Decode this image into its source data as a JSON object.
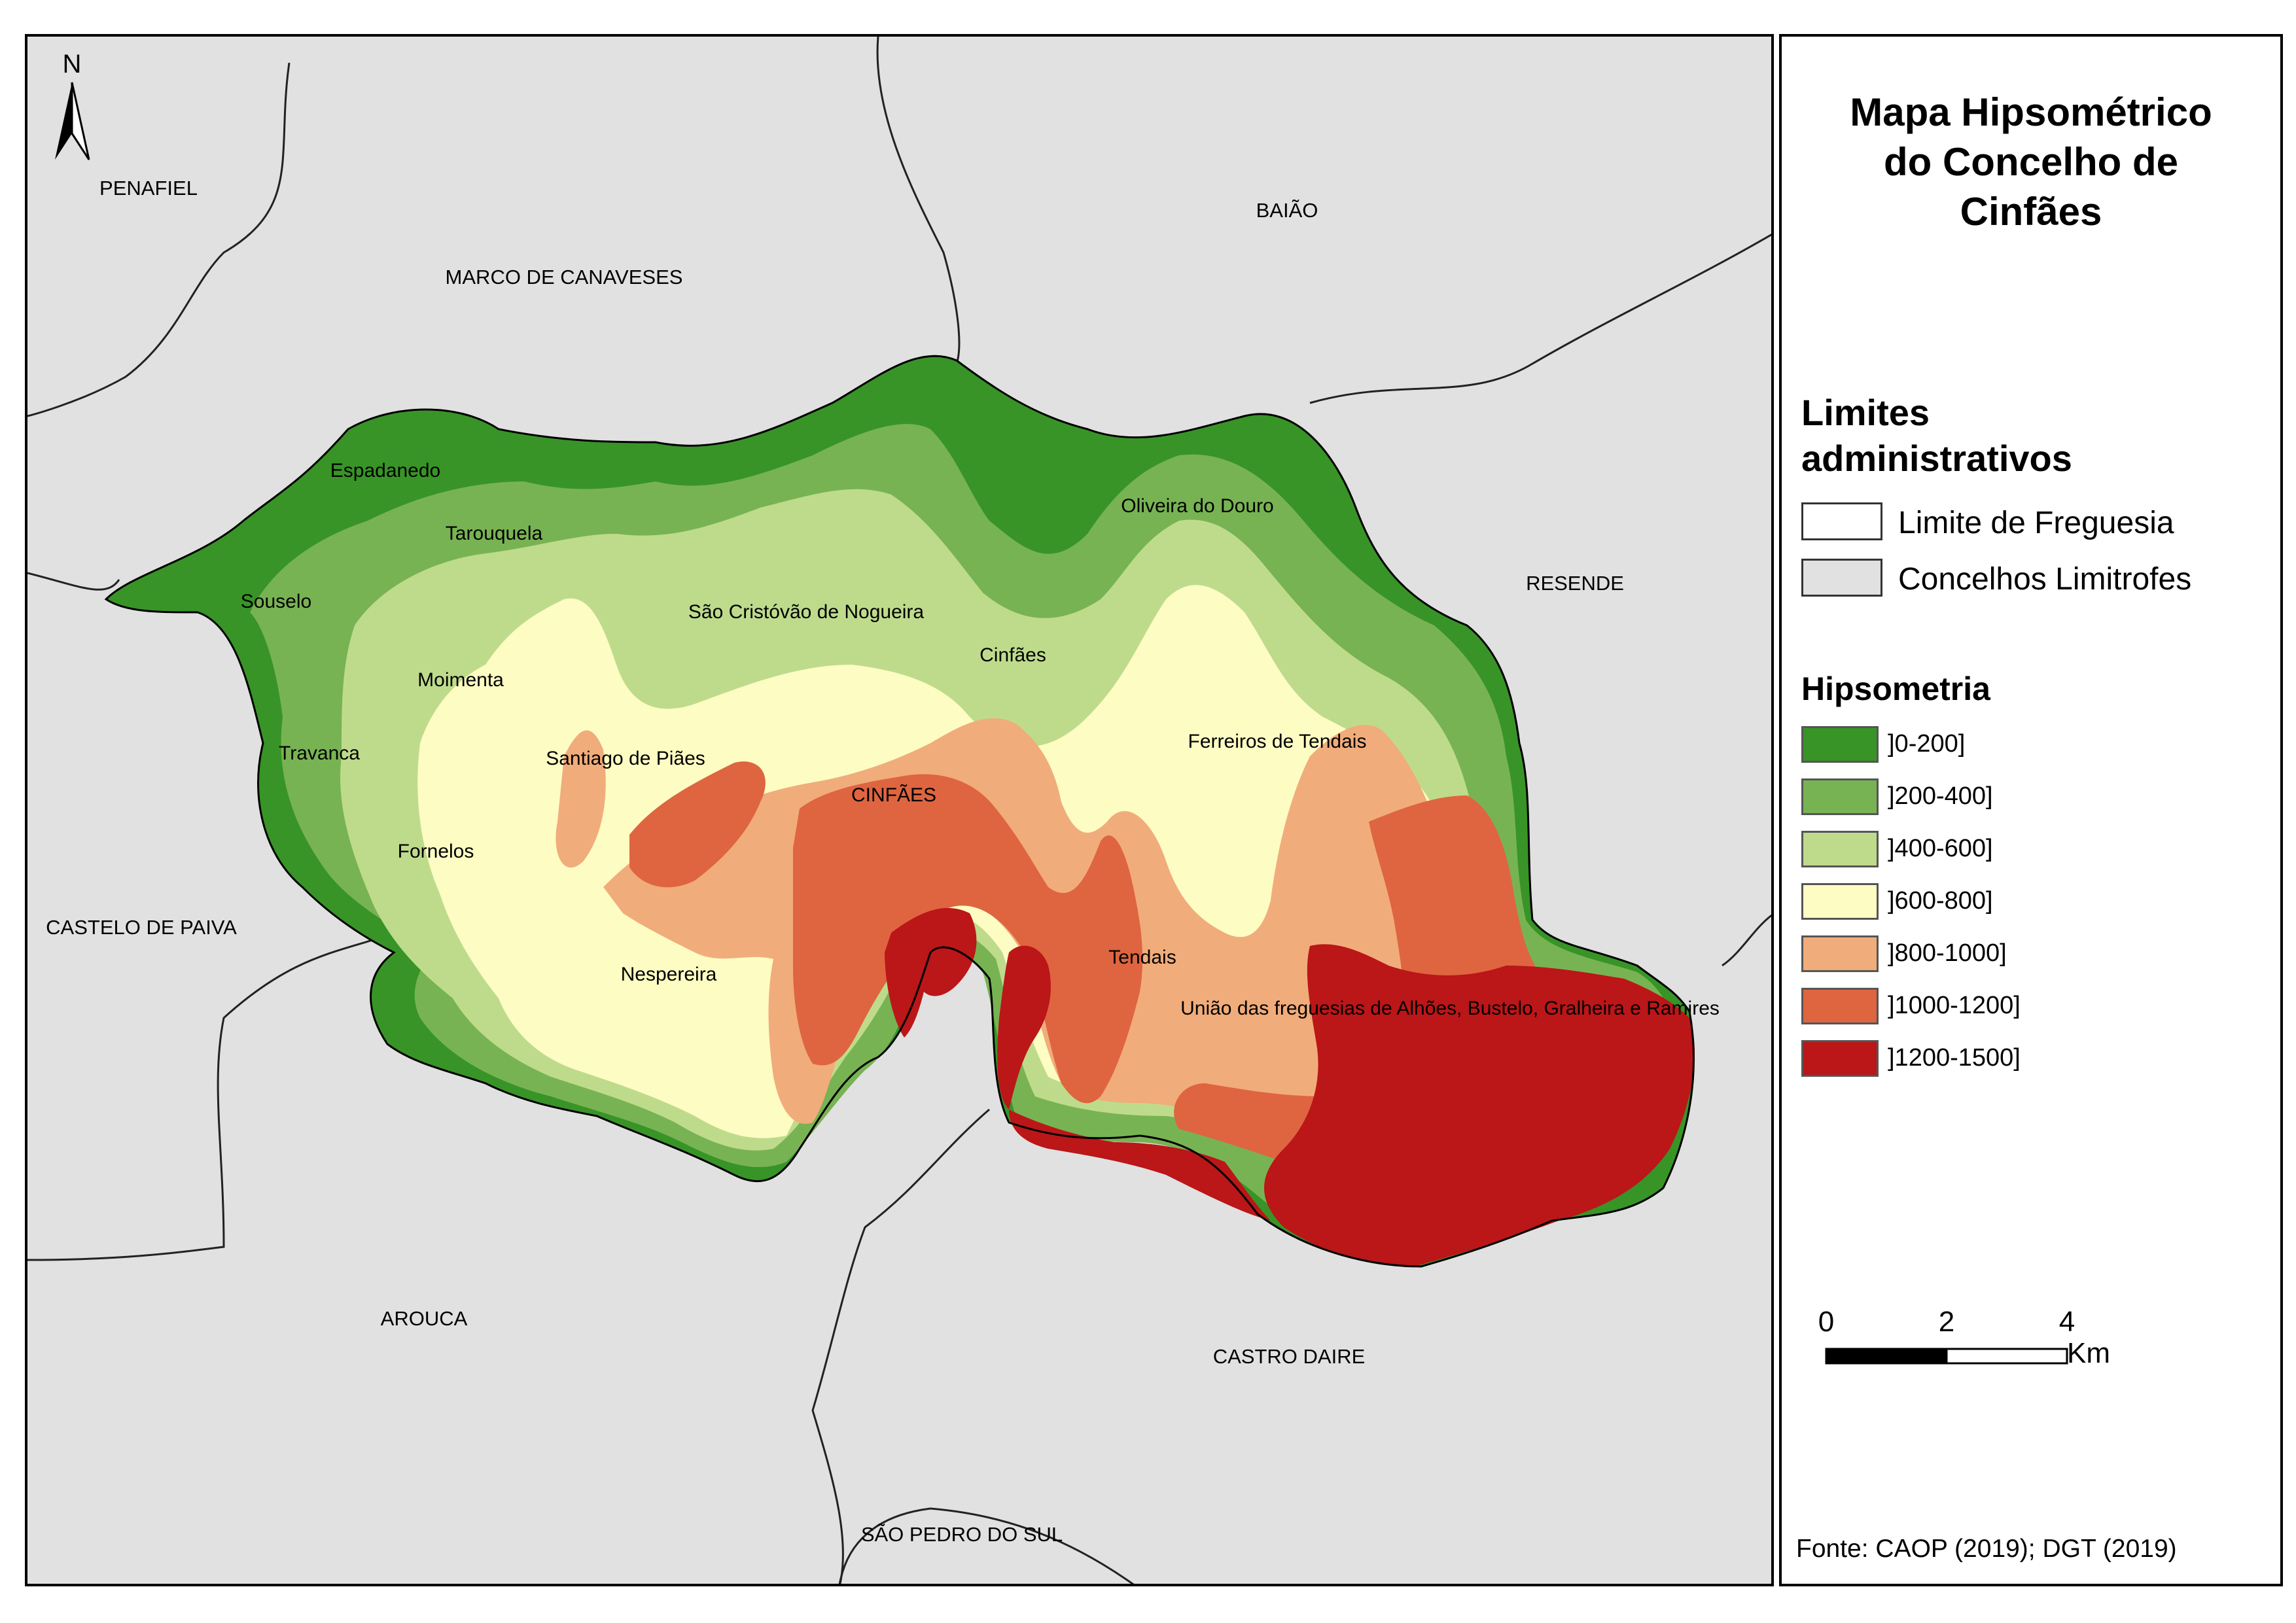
{
  "legend": {
    "title": "Mapa Hipsométrico do Concelho de Cinfães",
    "limits_title": "Limites administrativos",
    "limits": [
      {
        "label": "Limite de Freguesia",
        "color": "#ffffff"
      },
      {
        "label": "Concelhos Limitrofes",
        "color": "#e1e1e1"
      }
    ],
    "hyp_title": "Hipsometria",
    "classes": [
      {
        "label": "]0-200]",
        "color": "#389427"
      },
      {
        "label": "]200-400]",
        "color": "#78b353"
      },
      {
        "label": "]400-600]",
        "color": "#bedb8c"
      },
      {
        "label": "]600-800]",
        "color": "#fdfcc3"
      },
      {
        "label": "]800-1000]",
        "color": "#f1ac7b"
      },
      {
        "label": "]1000-1200]",
        "color": "#de6540"
      },
      {
        "label": "]1200-1500]",
        "color": "#bb1618"
      }
    ],
    "scale": {
      "ticks": [
        "0",
        "2",
        "4"
      ],
      "unit": "Km"
    },
    "source": "Fonte: CAOP (2019); DGT (2019)"
  },
  "north_arrow": {
    "letter": "N"
  },
  "neighbors": [
    "PENAFIEL",
    "MARCO DE CANAVESES",
    "BAIÃO",
    "RESENDE",
    "CASTELO DE PAIVA",
    "AROUCA",
    "CASTRO DAIRE",
    "SÃO PEDRO DO SUL"
  ],
  "parishes": [
    "Espadanedo",
    "Tarouquela",
    "Souselo",
    "Moimenta",
    "Travanca",
    "Santiago de Piães",
    "Fornelos",
    "Nespereira",
    "São Cristóvão de Nogueira",
    "Cinfães",
    "CINFÃES",
    "Oliveira do Douro",
    "Ferreiros de Tendais",
    "Tendais",
    "União das freguesias de Alhões, Bustelo, Gralheira e Ramires"
  ]
}
